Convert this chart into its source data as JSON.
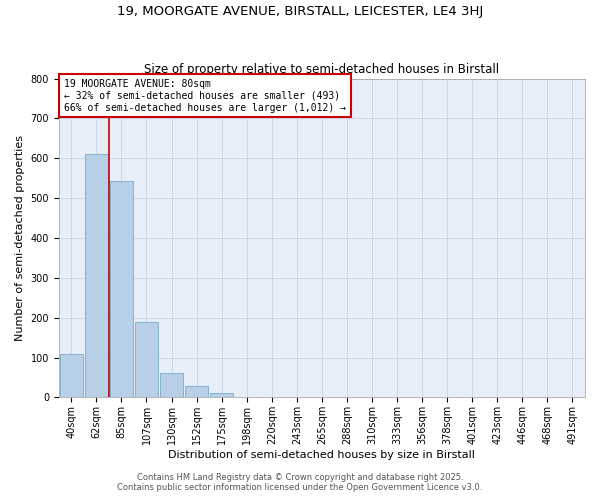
{
  "title": "19, MOORGATE AVENUE, BIRSTALL, LEICESTER, LE4 3HJ",
  "subtitle": "Size of property relative to semi-detached houses in Birstall",
  "xlabel": "Distribution of semi-detached houses by size in Birstall",
  "ylabel": "Number of semi-detached properties",
  "categories": [
    "40sqm",
    "62sqm",
    "85sqm",
    "107sqm",
    "130sqm",
    "152sqm",
    "175sqm",
    "198sqm",
    "220sqm",
    "243sqm",
    "265sqm",
    "288sqm",
    "310sqm",
    "333sqm",
    "356sqm",
    "378sqm",
    "401sqm",
    "423sqm",
    "446sqm",
    "468sqm",
    "491sqm"
  ],
  "values": [
    109,
    611,
    544,
    188,
    62,
    28,
    10,
    0,
    0,
    0,
    0,
    0,
    0,
    0,
    0,
    0,
    0,
    0,
    0,
    0,
    0
  ],
  "bar_color": "#b8cfe8",
  "bar_edge_color": "#7aabcc",
  "vline_x": 1.5,
  "vline_color": "#cc0000",
  "annotation_title": "19 MOORGATE AVENUE: 80sqm",
  "annotation_line1": "← 32% of semi-detached houses are smaller (493)",
  "annotation_line2": "66% of semi-detached houses are larger (1,012) →",
  "annotation_box_color": "#ffffff",
  "annotation_box_edge": "#cc0000",
  "grid_color": "#c8d8e8",
  "bg_color": "#e8eef8",
  "ylim": [
    0,
    800
  ],
  "yticks": [
    0,
    100,
    200,
    300,
    400,
    500,
    600,
    700,
    800
  ],
  "footer1": "Contains HM Land Registry data © Crown copyright and database right 2025.",
  "footer2": "Contains public sector information licensed under the Open Government Licence v3.0.",
  "title_fontsize": 9.5,
  "subtitle_fontsize": 8.5,
  "axis_label_fontsize": 8,
  "tick_fontsize": 7,
  "annot_fontsize": 7,
  "footer_fontsize": 6
}
